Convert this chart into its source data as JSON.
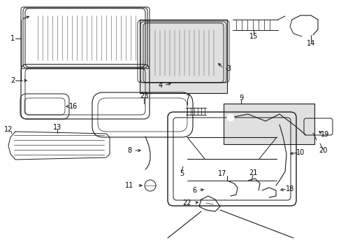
{
  "background_color": "#ffffff",
  "line_color": "#1a1a1a",
  "gray_fill": "#e0e0e0",
  "figsize": [
    4.89,
    3.6
  ],
  "dpi": 100
}
